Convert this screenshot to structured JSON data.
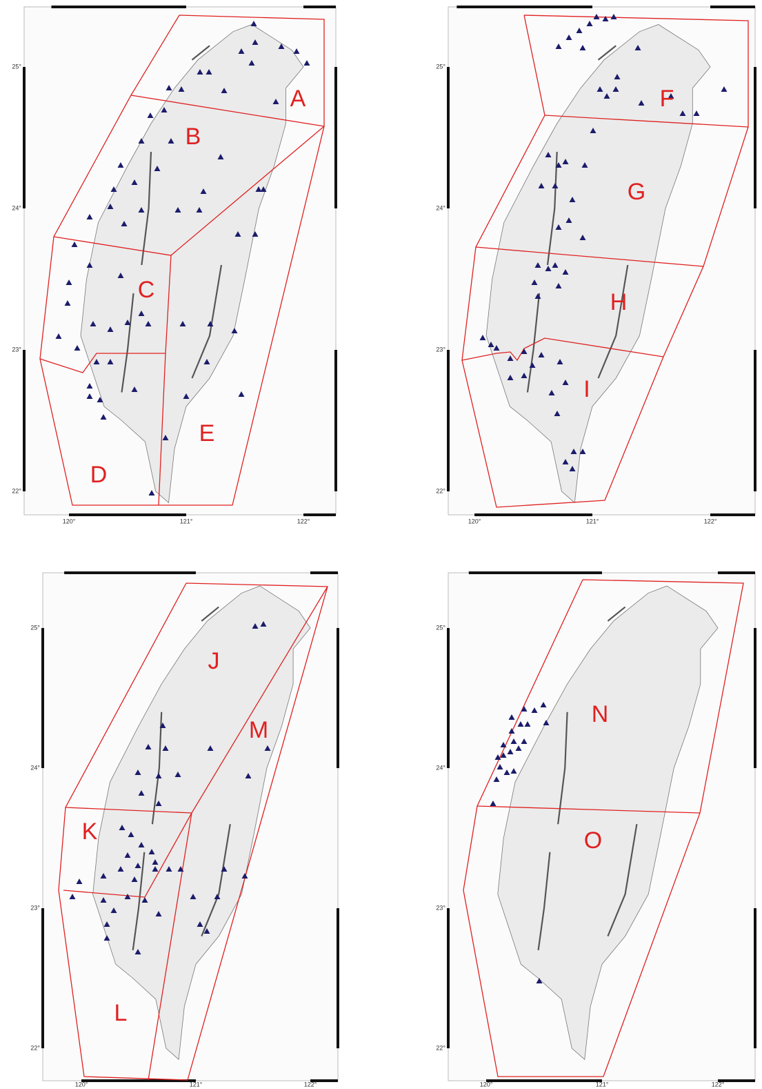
{
  "panels": [
    {
      "y_labels": [
        "25°",
        "24°",
        "23°",
        "22°"
      ],
      "x_labels": [
        "120°",
        "121°",
        "122°"
      ],
      "regions": [
        "A",
        "B",
        "C",
        "D",
        "E"
      ]
    },
    {
      "y_labels": [
        "25°",
        "24°",
        "23°",
        "22°"
      ],
      "x_labels": [
        "120°",
        "121°",
        "122°"
      ],
      "regions": [
        "F",
        "G",
        "H",
        "I"
      ]
    },
    {
      "y_labels": [
        "25°",
        "24°",
        "23°",
        "22°"
      ],
      "x_labels": [
        "120°",
        "121°",
        "122°"
      ],
      "regions": [
        "J",
        "K",
        "L",
        "M"
      ]
    },
    {
      "y_labels": [
        "25°",
        "24°",
        "23°",
        "22°"
      ],
      "x_labels": [
        "120°",
        "121°",
        "122°"
      ],
      "regions": [
        "N",
        "O"
      ]
    }
  ]
}
